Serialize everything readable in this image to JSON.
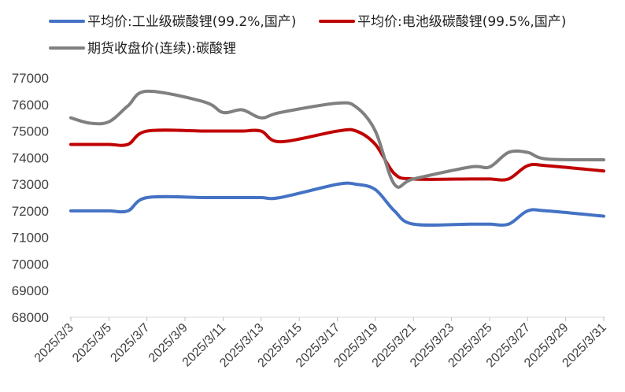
{
  "chart_data": {
    "type": "line",
    "title": "",
    "xlabel": "",
    "ylabel": "",
    "ylim": [
      68000,
      77000
    ],
    "yticks": [
      68000,
      69000,
      70000,
      71000,
      72000,
      73000,
      74000,
      75000,
      76000,
      77000
    ],
    "grid": false,
    "legend_position": "top",
    "x_tick_labels": [
      "2025/3/3",
      "2025/3/5",
      "2025/3/7",
      "2025/3/9",
      "2025/3/11",
      "2025/3/13",
      "2025/3/15",
      "2025/3/17",
      "2025/3/19",
      "2025/3/21",
      "2025/3/23",
      "2025/3/25",
      "2025/3/27",
      "2025/3/29",
      "2025/3/31"
    ],
    "x": [
      "2025/3/3",
      "2025/3/4",
      "2025/3/5",
      "2025/3/6",
      "2025/3/7",
      "2025/3/10",
      "2025/3/11",
      "2025/3/12",
      "2025/3/13",
      "2025/3/14",
      "2025/3/17",
      "2025/3/18",
      "2025/3/19",
      "2025/3/20",
      "2025/3/21",
      "2025/3/24",
      "2025/3/25",
      "2025/3/26",
      "2025/3/27",
      "2025/3/28",
      "2025/3/31"
    ],
    "series": [
      {
        "name": "平均价:工业级碳酸锂(99.2%,国产)",
        "color": "#4472C4",
        "values": [
          72000,
          72000,
          72000,
          72000,
          72500,
          72500,
          72500,
          72500,
          72500,
          72500,
          73000,
          73000,
          72800,
          72000,
          71500,
          71500,
          71500,
          71500,
          72000,
          72000,
          71800
        ]
      },
      {
        "name": "平均价:电池级碳酸锂(99.5%,国产)",
        "color": "#C00000",
        "values": [
          74500,
          74500,
          74500,
          74500,
          75000,
          75000,
          75000,
          75000,
          75000,
          74600,
          75000,
          75000,
          74500,
          73400,
          73200,
          73200,
          73200,
          73200,
          73700,
          73700,
          73500
        ]
      },
      {
        "name": "期货收盘价(连续):碳酸锂",
        "color": "#808080",
        "values": [
          75500,
          75300,
          75350,
          75950,
          76500,
          76100,
          75700,
          75800,
          75500,
          75700,
          76050,
          75900,
          75000,
          73000,
          73200,
          73650,
          73650,
          74200,
          74200,
          73950,
          73920
        ]
      }
    ]
  }
}
